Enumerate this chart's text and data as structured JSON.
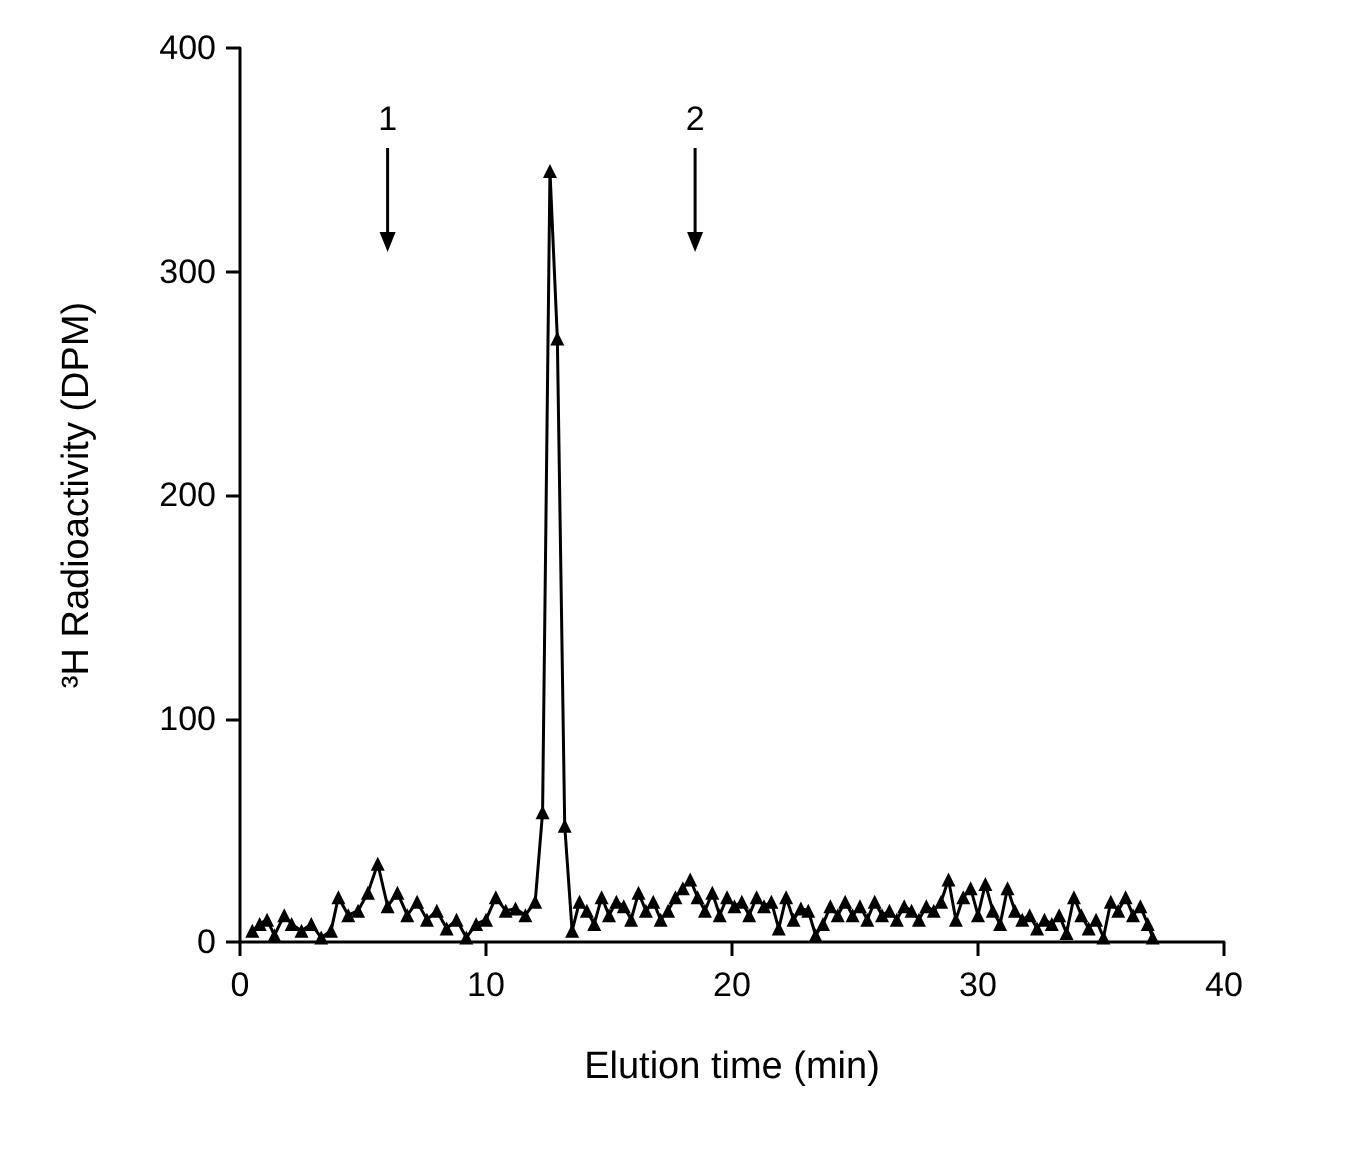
{
  "chart_data": {
    "type": "line",
    "xlabel": "Elution time (min)",
    "ylabel": "³H Radioactivity (DPM)",
    "xlim": [
      0,
      40
    ],
    "xticks": [
      0,
      10,
      20,
      30,
      40
    ],
    "ylim": [
      0,
      400
    ],
    "yticks": [
      0,
      100,
      200,
      300,
      400
    ],
    "grid": false,
    "marker": "triangle",
    "line_style": "solid",
    "annotations": [
      {
        "text": "1",
        "x": 6
      },
      {
        "text": "2",
        "x": 18.5
      }
    ],
    "series": [
      {
        "color": "#000000",
        "x": [
          0.5,
          0.8,
          1.1,
          1.4,
          1.8,
          2.1,
          2.5,
          2.9,
          3.3,
          3.7,
          4.0,
          4.4,
          4.8,
          5.2,
          5.6,
          6.0,
          6.4,
          6.8,
          7.2,
          7.6,
          8.0,
          8.4,
          8.8,
          9.2,
          9.6,
          10.0,
          10.4,
          10.8,
          11.2,
          11.6,
          12.0,
          12.3,
          12.6,
          12.9,
          13.2,
          13.5,
          13.8,
          14.1,
          14.4,
          14.7,
          15.0,
          15.3,
          15.6,
          15.9,
          16.2,
          16.5,
          16.8,
          17.1,
          17.4,
          17.7,
          18.0,
          18.3,
          18.6,
          18.9,
          19.2,
          19.5,
          19.8,
          20.1,
          20.4,
          20.7,
          21.0,
          21.3,
          21.6,
          21.9,
          22.2,
          22.5,
          22.8,
          23.1,
          23.4,
          23.7,
          24.0,
          24.3,
          24.6,
          24.9,
          25.2,
          25.5,
          25.8,
          26.1,
          26.4,
          26.7,
          27.0,
          27.3,
          27.6,
          27.9,
          28.2,
          28.5,
          28.8,
          29.1,
          29.4,
          29.7,
          30.0,
          30.3,
          30.6,
          30.9,
          31.2,
          31.5,
          31.8,
          32.1,
          32.4,
          32.7,
          33.0,
          33.3,
          33.6,
          33.9,
          34.2,
          34.5,
          34.8,
          35.1,
          35.4,
          35.7,
          36.0,
          36.3,
          36.6,
          36.9,
          37.1
        ],
        "values": [
          5,
          8,
          10,
          3,
          12,
          8,
          5,
          8,
          2,
          5,
          20,
          12,
          14,
          22,
          35,
          16,
          22,
          12,
          18,
          10,
          14,
          6,
          10,
          2,
          8,
          10,
          20,
          14,
          15,
          12,
          18,
          58,
          345,
          270,
          52,
          5,
          18,
          14,
          8,
          20,
          12,
          18,
          16,
          10,
          22,
          14,
          18,
          10,
          14,
          20,
          24,
          28,
          20,
          14,
          22,
          12,
          20,
          16,
          18,
          12,
          20,
          16,
          18,
          6,
          20,
          10,
          15,
          14,
          3,
          8,
          16,
          12,
          18,
          12,
          16,
          10,
          18,
          12,
          14,
          10,
          16,
          14,
          10,
          16,
          14,
          18,
          28,
          10,
          20,
          24,
          12,
          26,
          14,
          8,
          24,
          14,
          10,
          12,
          6,
          10,
          8,
          12,
          4,
          20,
          12,
          6,
          10,
          2,
          18,
          14,
          20,
          12,
          16,
          8,
          2
        ]
      }
    ]
  }
}
